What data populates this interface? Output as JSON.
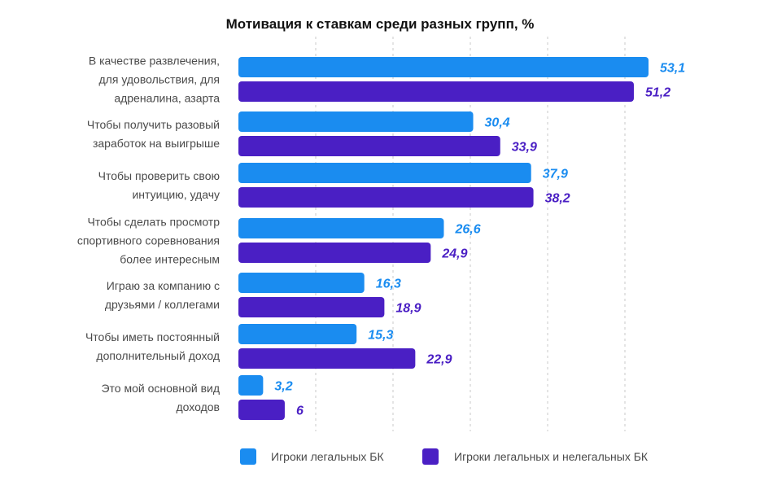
{
  "chart_data": {
    "type": "bar",
    "orientation": "horizontal",
    "title": "Мотивация к ставкам среди разных групп, %",
    "categories": [
      [
        "В качестве развлечения,",
        "для удовольствия, для",
        "адреналина, азарта"
      ],
      [
        "Чтобы получить разовый",
        "заработок на выигрыше"
      ],
      [
        "Чтобы проверить свою",
        "интуицию, удачу"
      ],
      [
        "Чтобы сделать просмотр",
        "спортивного соревнования",
        "более интересным"
      ],
      [
        "Играю за компанию с",
        "друзьями / коллегами"
      ],
      [
        "Чтобы иметь постоянный",
        "дополнительный доход"
      ],
      [
        "Это мой основной вид",
        "доходов"
      ]
    ],
    "series": [
      {
        "name": "Игроки легальных БК",
        "color": "#1a8cf0",
        "values": [
          53.1,
          30.4,
          37.9,
          26.6,
          16.3,
          15.3,
          3.2
        ],
        "labels": [
          "53,1",
          "30,4",
          "37,9",
          "26,6",
          "16,3",
          "15,3",
          "3,2"
        ]
      },
      {
        "name": "Игроки легальных и нелегальных БК",
        "color": "#4a1fc4",
        "values": [
          51.2,
          33.9,
          38.2,
          24.9,
          18.9,
          22.9,
          6
        ],
        "labels": [
          "51,2",
          "33,9",
          "38,2",
          "24,9",
          "18,9",
          "22,9",
          "6"
        ]
      }
    ],
    "xlim": [
      0,
      53.1
    ],
    "grid": true,
    "legend_position": "bottom"
  }
}
